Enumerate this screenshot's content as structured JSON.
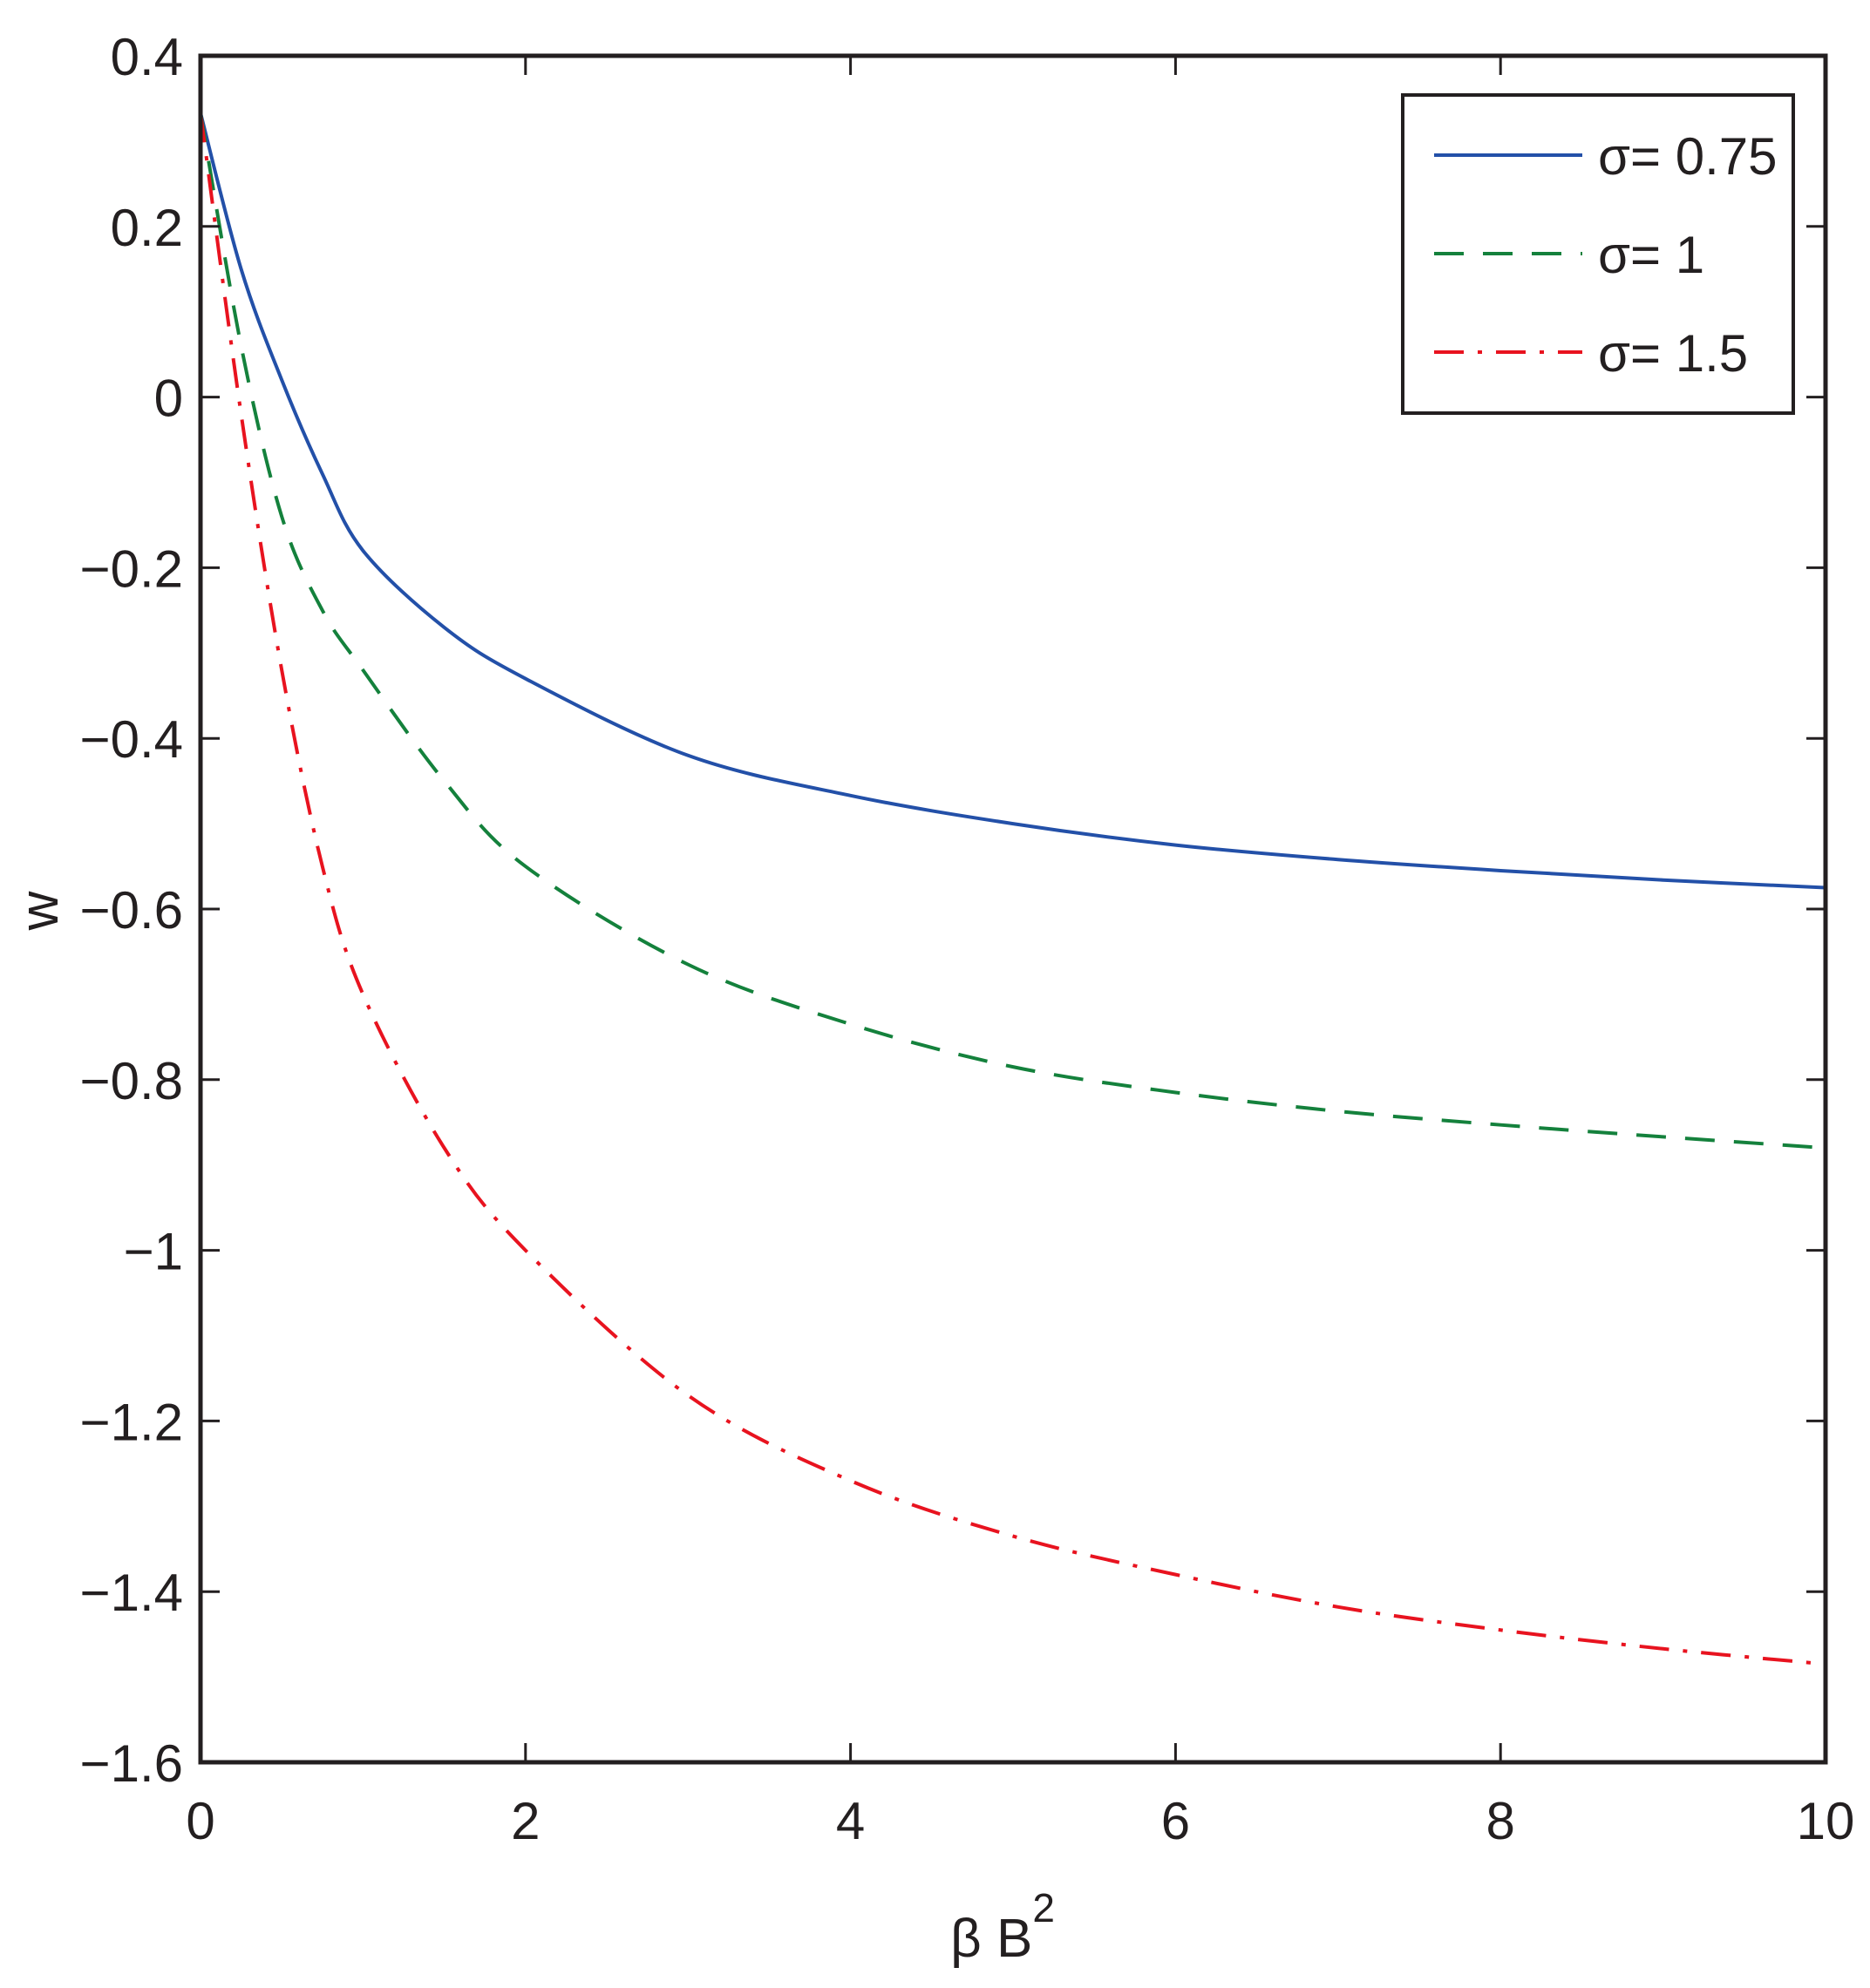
{
  "chart_data": {
    "type": "line",
    "xlabel": "β B",
    "xlabel_superscript": "2",
    "ylabel": "w",
    "xlim": [
      0,
      10
    ],
    "ylim": [
      -1.6,
      0.4
    ],
    "xticks": [
      "0",
      "2",
      "4",
      "6",
      "8",
      "10"
    ],
    "yticks": [
      "0.4",
      "0.2",
      "0",
      "−0.2",
      "−0.4",
      "−0.6",
      "−0.8",
      "−1",
      "−1.2",
      "−1.4",
      "−1.6"
    ],
    "grid": false,
    "legend_position": "top-right",
    "x": [
      0,
      0.25,
      0.5,
      0.75,
      1,
      1.5,
      2,
      3,
      4,
      5,
      6,
      7,
      8,
      9,
      10
    ],
    "series": [
      {
        "name": "σ= 0.75",
        "color": "#2350a8",
        "style": "solid",
        "values": [
          0.333,
          0.15,
          0.02,
          -0.09,
          -0.18,
          -0.27,
          -0.33,
          -0.42,
          -0.467,
          -0.5,
          -0.525,
          -0.542,
          -0.555,
          -0.566,
          -0.575
        ]
      },
      {
        "name": "σ= 1",
        "color": "#14813c",
        "style": "dashed",
        "values": [
          0.333,
          0.06,
          -0.14,
          -0.25,
          -0.32,
          -0.45,
          -0.55,
          -0.665,
          -0.735,
          -0.785,
          -0.815,
          -0.837,
          -0.853,
          -0.867,
          -0.88
        ]
      },
      {
        "name": "σ= 1.5",
        "color": "#e8131f",
        "style": "dashdot",
        "values": [
          0.333,
          -0.02,
          -0.32,
          -0.55,
          -0.7,
          -0.88,
          -1.0,
          -1.17,
          -1.27,
          -1.335,
          -1.38,
          -1.418,
          -1.445,
          -1.467,
          -1.485
        ]
      }
    ]
  }
}
